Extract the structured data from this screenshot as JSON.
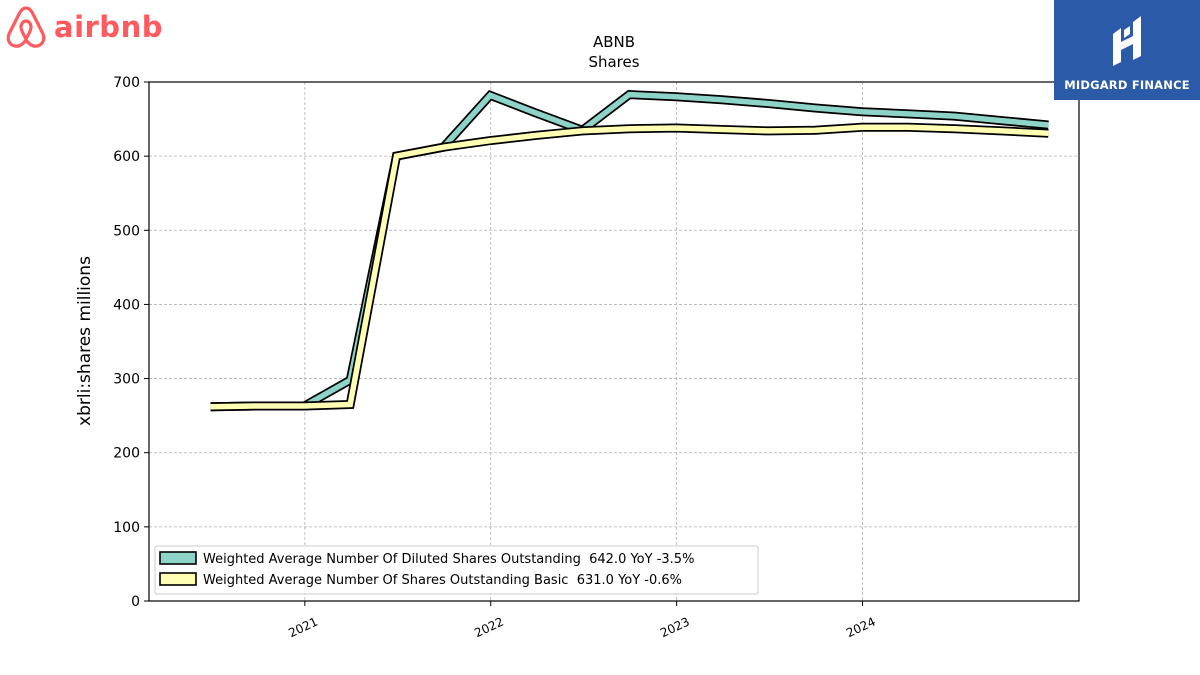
{
  "brand": {
    "airbnb_name": "airbnb",
    "airbnb_color": "#ff5a5f",
    "midgard_name": "MIDGARD FINANCE",
    "midgard_color": "#2b5aa8"
  },
  "chart_data": {
    "type": "line",
    "title": "ABNB",
    "subtitle": "Shares",
    "xlabel": "",
    "ylabel": "xbrli:shares millions",
    "ylim": [
      0,
      700
    ],
    "yticks": [
      0,
      100,
      200,
      300,
      400,
      500,
      600,
      700
    ],
    "xticks": [
      "2021",
      "2022",
      "2023",
      "2024"
    ],
    "xlim": [
      "2020-03",
      "2025-03"
    ],
    "grid": true,
    "legend_position": "lower-left",
    "series": [
      {
        "name": "Weighted Average Number Of Diluted Shares Outstanding",
        "legend": "Weighted Average Number Of Diluted Shares Outstanding  642.0 YoY -3.5%",
        "color": "#8dd3c7",
        "dates": [
          "2020-06-30",
          "2020-09-30",
          "2020-12-31",
          "2021-03-31",
          "2021-06-30",
          "2021-09-30",
          "2021-12-31",
          "2022-03-31",
          "2022-06-30",
          "2022-09-30",
          "2022-12-31",
          "2023-03-31",
          "2023-06-30",
          "2023-09-30",
          "2023-12-31",
          "2024-03-31",
          "2024-06-30",
          "2024-09-30",
          "2024-12-31"
        ],
        "values": [
          262,
          263,
          263,
          298,
          600,
          612,
          682,
          658,
          635,
          683,
          680,
          676,
          671,
          665,
          660,
          657,
          654,
          648,
          642
        ]
      },
      {
        "name": "Weighted Average Number Of Shares Outstanding Basic",
        "legend": "Weighted Average Number Of Shares Outstanding Basic  631.0 YoY -0.6%",
        "color": "#ffffb3",
        "dates": [
          "2020-06-30",
          "2020-09-30",
          "2020-12-31",
          "2021-03-31",
          "2021-06-30",
          "2021-09-30",
          "2021-12-31",
          "2022-03-31",
          "2022-06-30",
          "2022-09-30",
          "2022-12-31",
          "2023-03-31",
          "2023-06-30",
          "2023-09-30",
          "2023-12-31",
          "2024-03-31",
          "2024-06-30",
          "2024-09-30",
          "2024-12-31"
        ],
        "values": [
          262,
          263,
          263,
          265,
          600,
          612,
          621,
          628,
          634,
          637,
          638,
          636,
          634,
          635,
          639,
          639,
          637,
          634,
          631
        ]
      }
    ]
  }
}
